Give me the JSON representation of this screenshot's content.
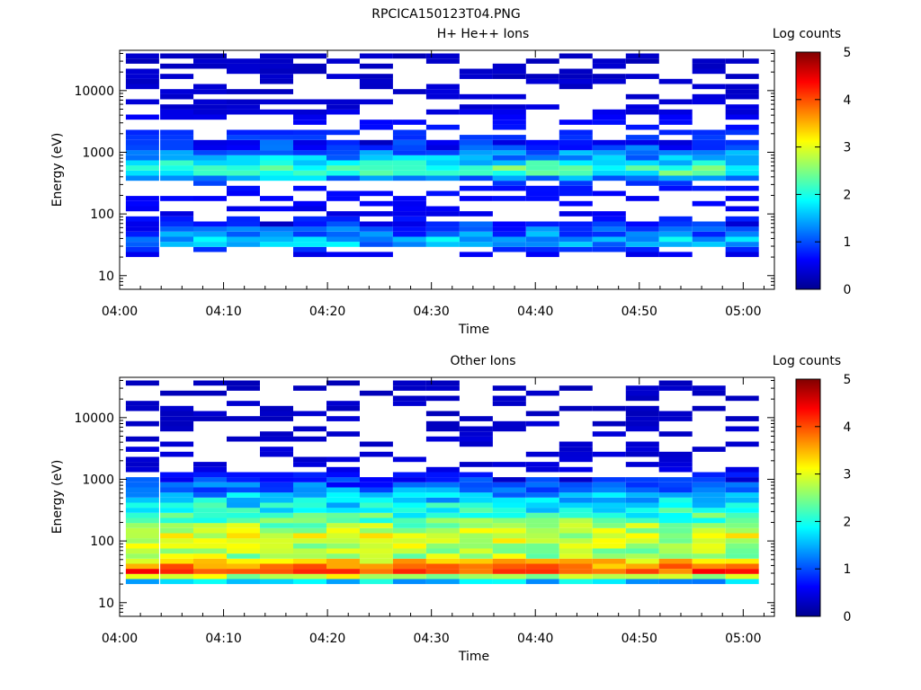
{
  "figure": {
    "title": "RPCICA150123T04.PNG"
  },
  "colors": {
    "axis": "#000000",
    "colormap": "jet"
  },
  "chart_data": [
    {
      "type": "heatmap",
      "title": "H+ He++ Ions",
      "xlabel": "Time",
      "ylabel": "Energy (eV)",
      "x_ticks": [
        "04:00",
        "04:10",
        "04:20",
        "04:30",
        "04:40",
        "04:50",
        "05:00"
      ],
      "x_range_minutes": [
        0,
        63
      ],
      "y_scale": "log",
      "y_range": [
        6,
        45000
      ],
      "y_ticks": [
        "10",
        "100",
        "1000",
        "10000"
      ],
      "colorbar": {
        "label": "Log counts",
        "range": [
          0,
          5
        ],
        "ticks": [
          "0",
          "1",
          "2",
          "3",
          "4",
          "5"
        ]
      },
      "time_bins_minutes": [
        2.2,
        5.5,
        8.7,
        11.9,
        15.1,
        18.3,
        21.5,
        24.7,
        27.9,
        31.1,
        34.3,
        37.5,
        40.7,
        43.9,
        47.1,
        50.3,
        53.5,
        56.7,
        59.9
      ],
      "typical_spectrum": [
        {
          "energy_ev": 25,
          "log_counts": 0.3
        },
        {
          "energy_ev": 35,
          "log_counts": 1.8
        },
        {
          "energy_ev": 45,
          "log_counts": 1.2
        },
        {
          "energy_ev": 100,
          "log_counts": 0.3
        },
        {
          "energy_ev": 300,
          "log_counts": 0.5
        },
        {
          "energy_ev": 500,
          "log_counts": 2.4
        },
        {
          "energy_ev": 800,
          "log_counts": 1.5
        },
        {
          "energy_ev": 1300,
          "log_counts": 0.8
        },
        {
          "energy_ev": 5000,
          "log_counts": 0.2
        },
        {
          "energy_ev": 30000,
          "log_counts": 0.1
        }
      ]
    },
    {
      "type": "heatmap",
      "title": "Other Ions",
      "xlabel": "Time",
      "ylabel": "Energy (eV)",
      "x_ticks": [
        "04:00",
        "04:10",
        "04:20",
        "04:30",
        "04:40",
        "04:50",
        "05:00"
      ],
      "x_range_minutes": [
        0,
        63
      ],
      "y_scale": "log",
      "y_range": [
        6,
        45000
      ],
      "y_ticks": [
        "10",
        "100",
        "1000",
        "10000"
      ],
      "colorbar": {
        "label": "Log counts",
        "range": [
          0,
          5
        ],
        "ticks": [
          "0",
          "1",
          "2",
          "3",
          "4",
          "5"
        ]
      },
      "time_bins_minutes": [
        2.2,
        5.5,
        8.7,
        11.9,
        15.1,
        18.3,
        21.5,
        24.7,
        27.9,
        31.1,
        34.3,
        37.5,
        40.7,
        43.9,
        47.1,
        50.3,
        53.5,
        56.7,
        59.9
      ],
      "typical_spectrum": [
        {
          "energy_ev": 10,
          "log_counts": 0.1
        },
        {
          "energy_ev": 20,
          "log_counts": 1.0
        },
        {
          "energy_ev": 33,
          "log_counts": 4.2
        },
        {
          "energy_ev": 60,
          "log_counts": 2.6
        },
        {
          "energy_ev": 130,
          "log_counts": 2.9
        },
        {
          "energy_ev": 300,
          "log_counts": 2.0
        },
        {
          "energy_ev": 500,
          "log_counts": 1.6
        },
        {
          "energy_ev": 1500,
          "log_counts": 0.2
        },
        {
          "energy_ev": 25000,
          "log_counts": 0.1
        }
      ]
    }
  ]
}
